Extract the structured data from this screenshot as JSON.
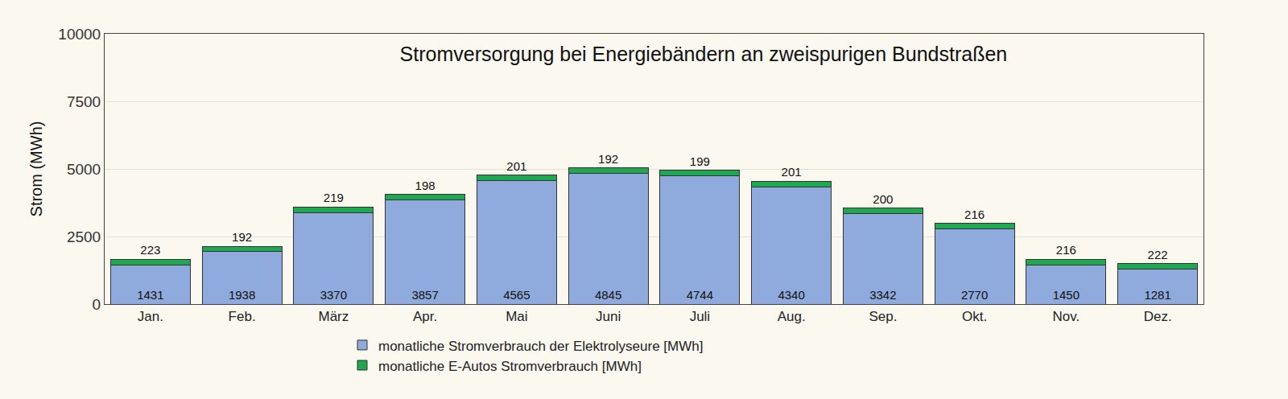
{
  "chart_data": {
    "type": "bar",
    "title": "Stromversorgung bei Energiebändern an zweispurigen Bundstraßen",
    "y_label": "Strom (MWh)",
    "categories": [
      "Jan.",
      "Feb.",
      "März",
      "Apr.",
      "Mai",
      "Juni",
      "Juli",
      "Aug.",
      "Sep.",
      "Okt.",
      "Nov.",
      "Dez."
    ],
    "series": [
      {
        "name": "monatliche Stromverbrauch der Elektrolyseure [MWh]",
        "color": "#8faadc",
        "values": [
          1431,
          1938,
          3370,
          3857,
          4565,
          4845,
          4744,
          4340,
          3342,
          2770,
          1450,
          1281
        ]
      },
      {
        "name": "monatliche E-Autos Stromverbrauch [MWh]",
        "color": "#1fa84f",
        "values": [
          223,
          192,
          219,
          198,
          201,
          192,
          199,
          201,
          200,
          216,
          216,
          222
        ]
      }
    ],
    "ylim": [
      0,
      10000
    ],
    "yticks": [
      0,
      2500,
      5000,
      7500,
      10000
    ],
    "stacked": true,
    "data_labels": true,
    "grid": true,
    "legend": "bottom"
  }
}
